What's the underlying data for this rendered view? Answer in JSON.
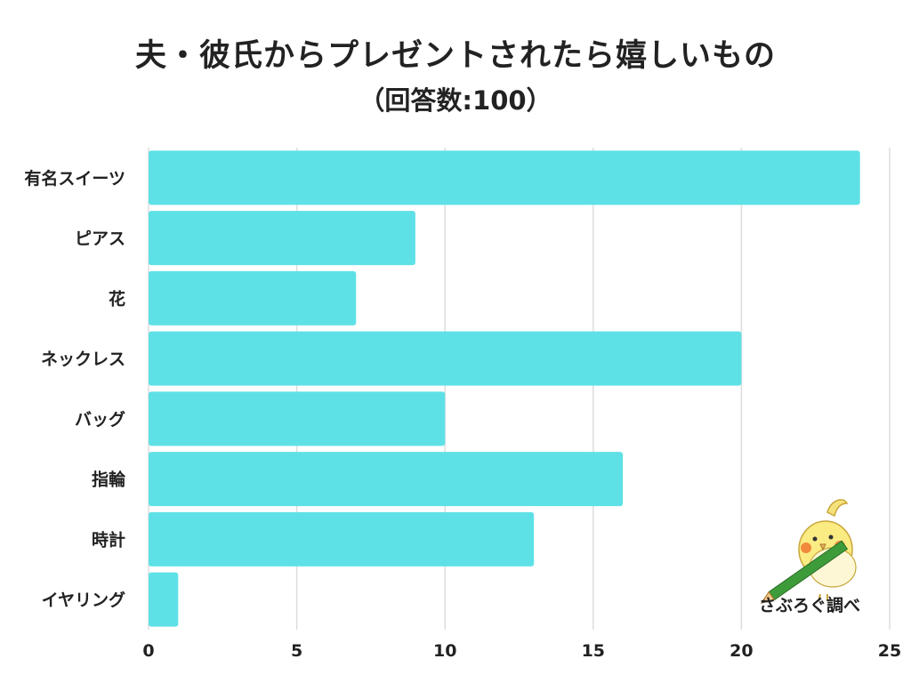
{
  "chart_data": {
    "type": "bar",
    "orientation": "horizontal",
    "title": "夫・彼氏からプレゼントされたら嬉しいもの",
    "subtitle": "（回答数:100）",
    "categories": [
      "有名スイーツ",
      "ピアス",
      "花",
      "ネックレス",
      "バッグ",
      "指輪",
      "時計",
      "イヤリング"
    ],
    "values": [
      24,
      9,
      7,
      20,
      10,
      16,
      13,
      1
    ],
    "xlim": [
      0,
      25
    ],
    "xticks": [
      "0",
      "5",
      "10",
      "15",
      "20",
      "25"
    ],
    "xlabel": "",
    "ylabel": "",
    "grid": "vertical",
    "bar_color": "#5ee1e6",
    "watermark_text": "さぶろぐ調べ"
  }
}
